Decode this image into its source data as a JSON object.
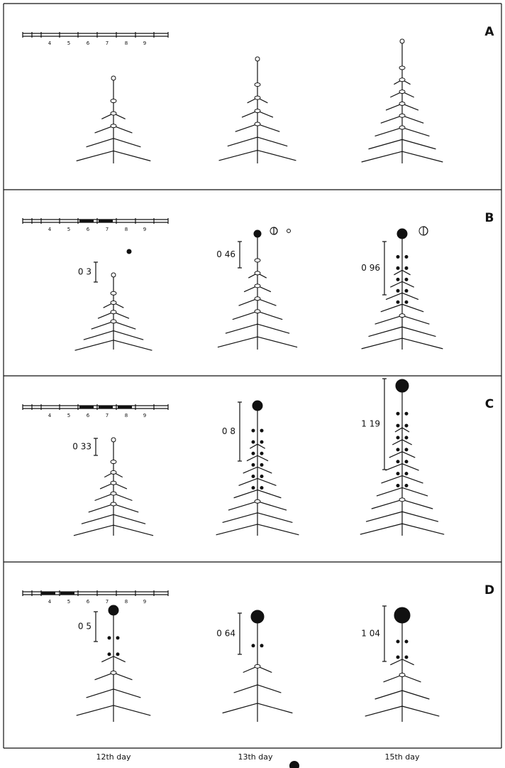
{
  "panels": [
    {
      "label": "A",
      "scale_ticks": [
        "4",
        "5",
        "6",
        "7",
        "8",
        "9"
      ]
    },
    {
      "label": "B",
      "scale_ticks": [
        "4",
        "5",
        "6",
        "7",
        "8",
        "9"
      ],
      "measurements": [
        "0 3",
        "0 46",
        "0 96"
      ]
    },
    {
      "label": "C",
      "scale_ticks": [
        "4",
        "5",
        "6",
        "7",
        "8",
        "9"
      ],
      "measurements": [
        "0 33",
        "0 8",
        "1 19"
      ]
    },
    {
      "label": "D",
      "scale_ticks": [
        "4",
        "5",
        "6",
        "7",
        "8",
        "9"
      ],
      "measurements": [
        "0 5",
        "0 64",
        "1 04"
      ]
    }
  ],
  "footer": {
    "days": [
      "12th day",
      "13th day",
      "15th day"
    ]
  }
}
